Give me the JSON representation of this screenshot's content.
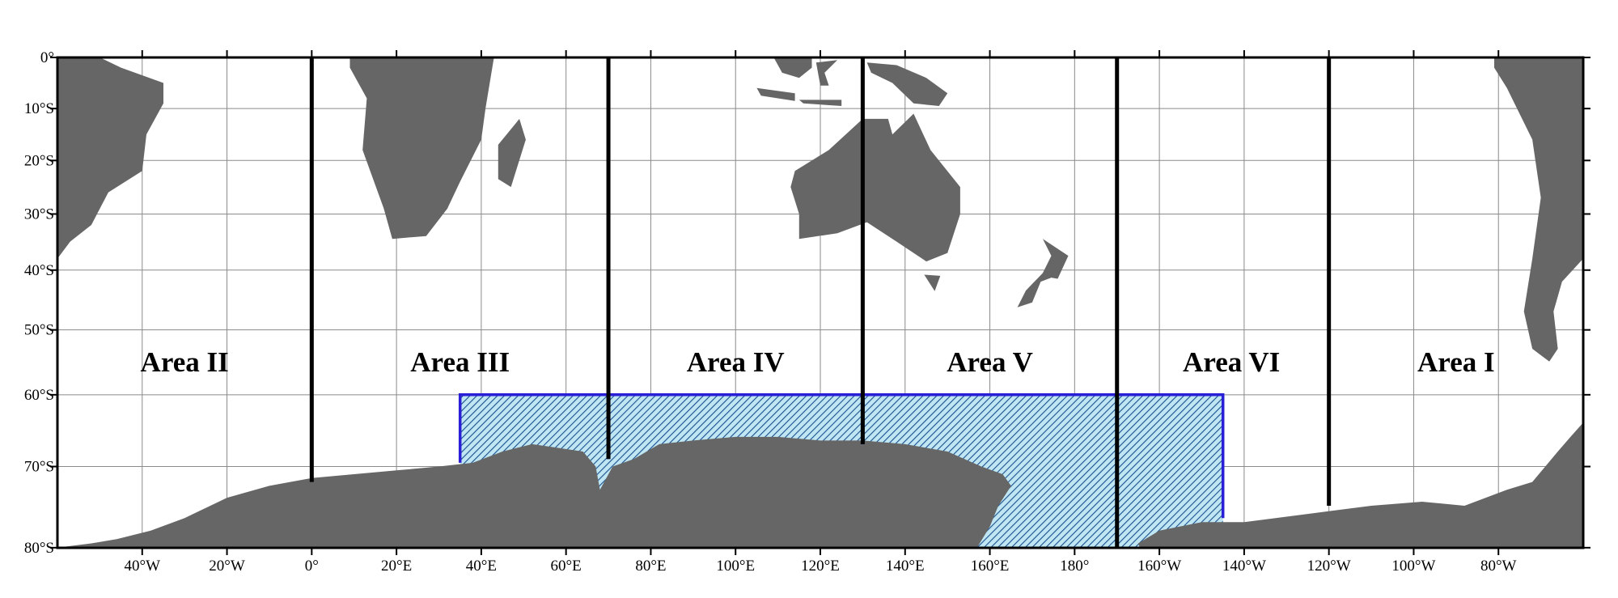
{
  "map": {
    "lon_ticks": [
      {
        "value": -40,
        "label": "40°W"
      },
      {
        "value": -20,
        "label": "20°W"
      },
      {
        "value": 0,
        "label": "0°"
      },
      {
        "value": 20,
        "label": "20°E"
      },
      {
        "value": 40,
        "label": "40°E"
      },
      {
        "value": 60,
        "label": "60°E"
      },
      {
        "value": 80,
        "label": "80°E"
      },
      {
        "value": 100,
        "label": "100°E"
      },
      {
        "value": 120,
        "label": "120°E"
      },
      {
        "value": 140,
        "label": "140°E"
      },
      {
        "value": 160,
        "label": "160°E"
      },
      {
        "value": 180,
        "label": "180°"
      },
      {
        "value": 200,
        "label": "160°W"
      },
      {
        "value": 220,
        "label": "140°W"
      },
      {
        "value": 240,
        "label": "120°W"
      },
      {
        "value": 260,
        "label": "100°W"
      },
      {
        "value": 280,
        "label": "80°W"
      }
    ],
    "lat_ticks": [
      {
        "value": 0,
        "label": "0°"
      },
      {
        "value": -10,
        "label": "10°S"
      },
      {
        "value": -20,
        "label": "20°S"
      },
      {
        "value": -30,
        "label": "30°S"
      },
      {
        "value": -40,
        "label": "40°S"
      },
      {
        "value": -50,
        "label": "50°S"
      },
      {
        "value": -60,
        "label": "60°S"
      },
      {
        "value": -70,
        "label": "70°S"
      },
      {
        "value": -80,
        "label": "80°S"
      }
    ],
    "areas": [
      "Area II",
      "Area III",
      "Area IV",
      "Area V",
      "Area VI",
      "Area I"
    ]
  }
}
